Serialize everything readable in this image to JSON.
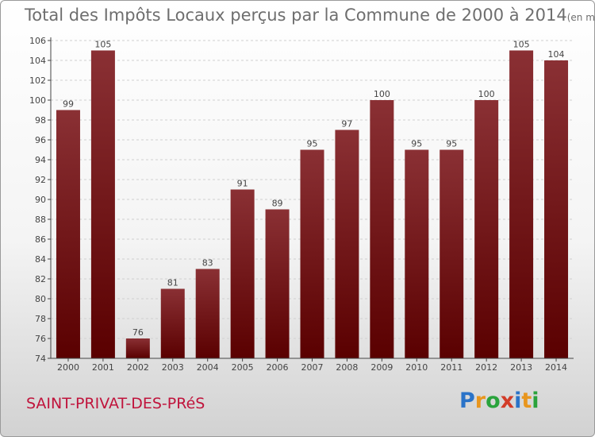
{
  "title": "Total des Impôts Locaux perçus par la Commune de 2000 à 2014",
  "unit": "(en milliers d'€)",
  "commune": "SAINT-PRIVAT-DES-PRéS",
  "logo": {
    "letters": [
      "P",
      "r",
      "o",
      "x",
      "i",
      "t",
      "i"
    ],
    "colors": [
      "#2a73c8",
      "#e8961e",
      "#2aa33c",
      "#d23c28",
      "#2a73c8",
      "#e8961e",
      "#2aa33c"
    ]
  },
  "colors": {
    "bar_top": "#8a3034",
    "bar_bottom": "#5a0000",
    "axis": "#444444",
    "grid": "#d0d0d0",
    "label": "#444444"
  },
  "chart_data": {
    "type": "bar",
    "title": "Total des Impôts Locaux perçus par la Commune de 2000 à 2014",
    "ylabel": "(en milliers d'€)",
    "xlabel": "",
    "categories": [
      "2000",
      "2001",
      "2002",
      "2003",
      "2004",
      "2005",
      "2006",
      "2007",
      "2008",
      "2009",
      "2010",
      "2011",
      "2012",
      "2013",
      "2014"
    ],
    "values": [
      99,
      105,
      76,
      81,
      83,
      91,
      89,
      95,
      97,
      100,
      95,
      95,
      100,
      105,
      104
    ],
    "ylim": [
      74,
      106
    ],
    "ytick_step": 2,
    "grid": true,
    "data_labels": true
  }
}
